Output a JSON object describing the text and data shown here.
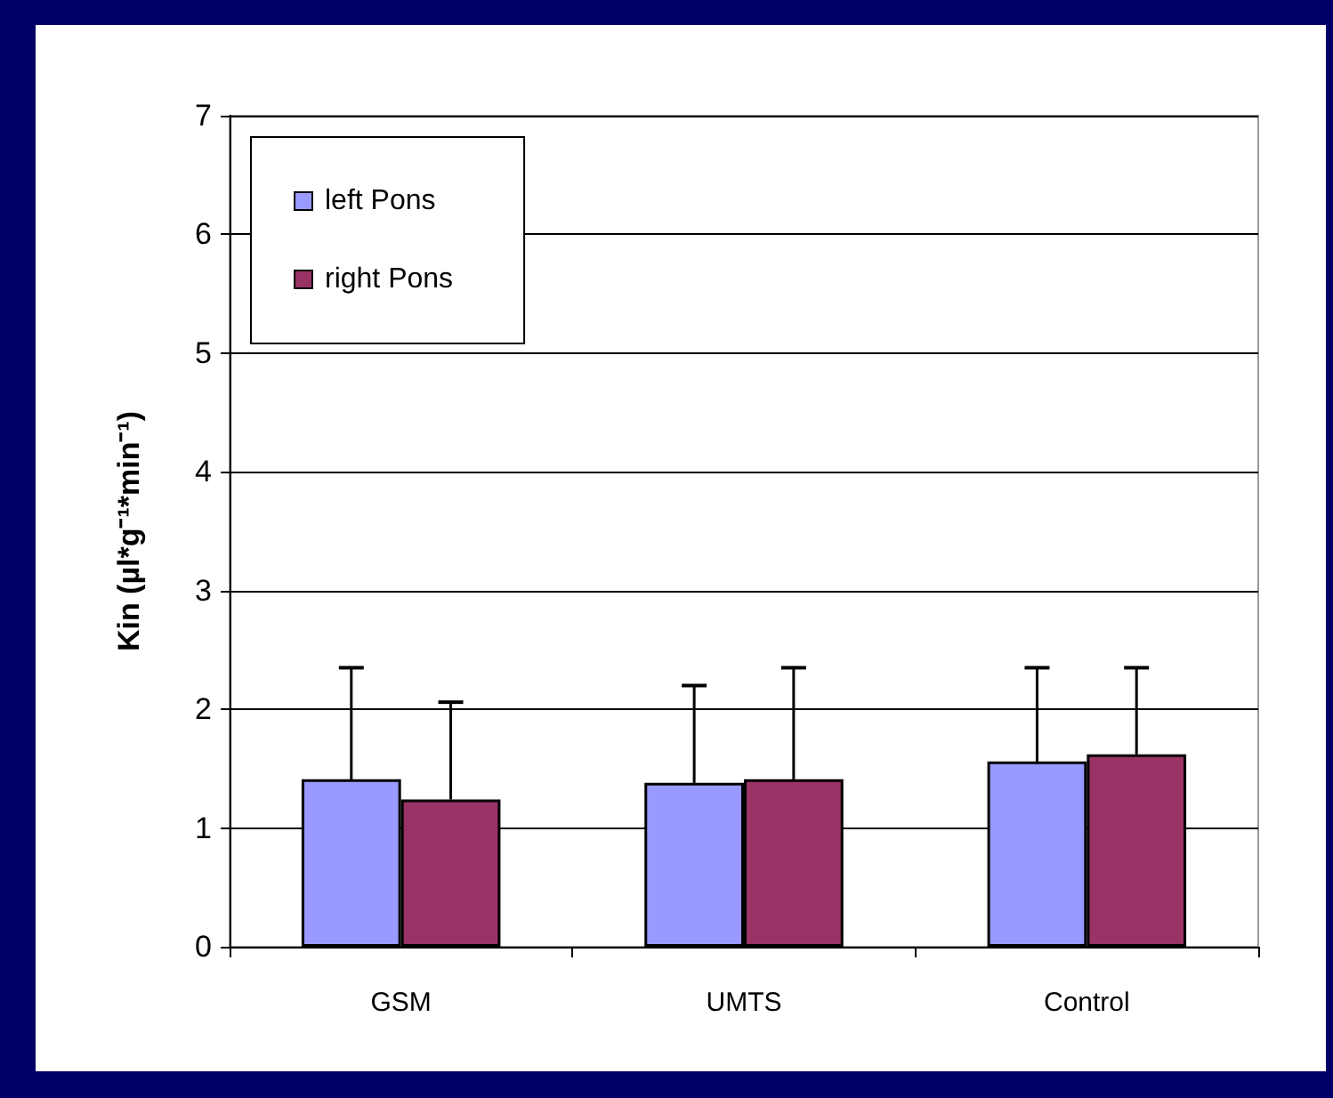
{
  "chart_data": {
    "type": "bar",
    "ylabel": "Kin (µl*g⁻¹*min⁻¹)",
    "categories": [
      "GSM",
      "UMTS",
      "Control"
    ],
    "series": [
      {
        "name": "left Pons",
        "color": "#9999ff",
        "values": [
          1.41,
          1.38,
          1.56
        ],
        "errors": [
          [
            1.41,
            2.35
          ],
          [
            1.38,
            2.2
          ],
          [
            1.56,
            2.35
          ]
        ]
      },
      {
        "name": "right Pons",
        "color": "#993366",
        "values": [
          1.24,
          1.41,
          1.62
        ],
        "errors": [
          [
            1.24,
            2.06
          ],
          [
            1.41,
            2.35
          ],
          [
            1.62,
            2.35
          ]
        ]
      }
    ],
    "ylim": [
      0,
      7
    ],
    "yticks": [
      0,
      1,
      2,
      3,
      4,
      5,
      6,
      7
    ],
    "grid": "y",
    "legend": "top left"
  }
}
